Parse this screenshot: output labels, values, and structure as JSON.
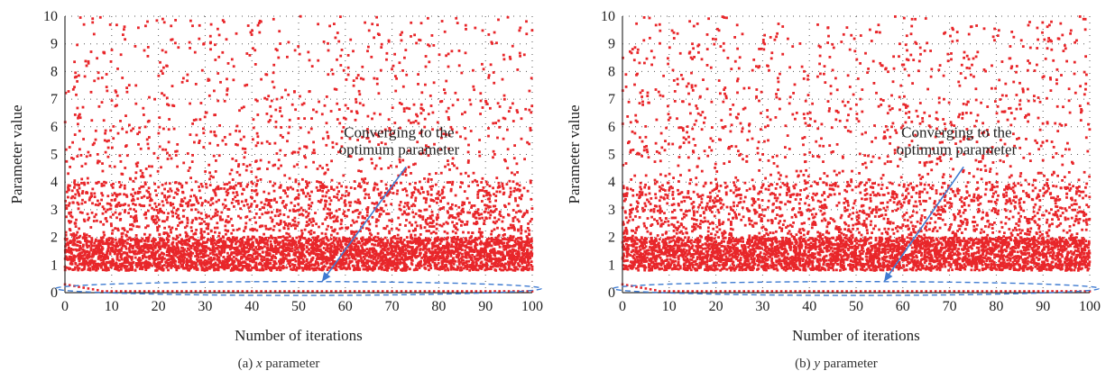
{
  "chart_data": [
    {
      "type": "scatter",
      "title": "",
      "xlabel": "Number of iterations",
      "ylabel": "Parameter value",
      "xlim": [
        0,
        100
      ],
      "ylim": [
        0,
        10
      ],
      "x_ticks": [
        "0",
        "10",
        "20",
        "30",
        "40",
        "50",
        "60",
        "70",
        "80",
        "90",
        "100"
      ],
      "y_ticks": [
        "0",
        "1",
        "2",
        "3",
        "4",
        "5",
        "6",
        "7",
        "8",
        "9",
        "10"
      ],
      "grid": "dotted",
      "marker_color": "#e8262a",
      "annotation": {
        "text_line1": "Converging to the",
        "text_line2": "optimum parameter",
        "target": [
          55,
          0.4
        ]
      },
      "convergence_ellipse": {
        "center": [
          50,
          0.15
        ],
        "x_radius": 52,
        "y_radius": 0.25,
        "color": "#3f7bd1"
      },
      "distribution": {
        "dense_band": [
          0.8,
          2.0
        ],
        "converged_value": 0.05,
        "points_per_iteration": 60
      },
      "caption_prefix": "(a)",
      "caption_var": "x",
      "caption_suffix": " parameter"
    },
    {
      "type": "scatter",
      "title": "",
      "xlabel": "Number of iterations",
      "ylabel": "Parameter value",
      "xlim": [
        0,
        100
      ],
      "ylim": [
        0,
        10
      ],
      "x_ticks": [
        "0",
        "10",
        "20",
        "30",
        "40",
        "50",
        "60",
        "70",
        "80",
        "90",
        "100"
      ],
      "y_ticks": [
        "0",
        "1",
        "2",
        "3",
        "4",
        "5",
        "6",
        "7",
        "8",
        "9",
        "10"
      ],
      "grid": "dotted",
      "marker_color": "#e8262a",
      "annotation": {
        "text_line1": "Converging to the",
        "text_line2": "optimum parameter",
        "target": [
          56,
          0.4
        ]
      },
      "convergence_ellipse": {
        "center": [
          50,
          0.15
        ],
        "x_radius": 52,
        "y_radius": 0.25,
        "color": "#3f7bd1"
      },
      "distribution": {
        "dense_band": [
          0.8,
          2.0
        ],
        "converged_value": 0.05,
        "points_per_iteration": 60
      },
      "caption_prefix": "(b)",
      "caption_var": "y",
      "caption_suffix": " parameter"
    }
  ]
}
